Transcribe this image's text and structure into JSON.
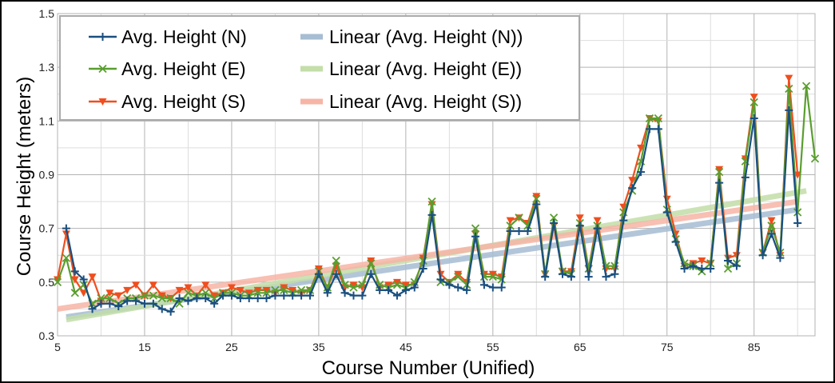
{
  "chart_data": {
    "type": "line",
    "xlabel": "Course Number (Unified)",
    "ylabel": "Course Height (meters)",
    "xlim": [
      5,
      92
    ],
    "ylim": [
      0.3,
      1.5
    ],
    "x_ticks": [
      5,
      15,
      25,
      35,
      45,
      55,
      65,
      75,
      85
    ],
    "y_ticks": [
      0.3,
      0.5,
      0.7,
      0.9,
      1.1,
      1.3,
      1.5
    ],
    "y_tick_labels": [
      "0.3",
      "0.5",
      "0.7",
      "0.9",
      "1.1",
      "1.3",
      "1.5"
    ],
    "grid": true,
    "legend_position": "top-left",
    "series": [
      {
        "name": "Avg. Height (N)",
        "color": "#1a4f7f",
        "marker": "plus",
        "points": [
          [
            6,
            0.7
          ],
          [
            7,
            0.54
          ],
          [
            8,
            0.51
          ],
          [
            9,
            0.4
          ],
          [
            10,
            0.42
          ],
          [
            11,
            0.42
          ],
          [
            12,
            0.41
          ],
          [
            13,
            0.43
          ],
          [
            14,
            0.43
          ],
          [
            15,
            0.42
          ],
          [
            16,
            0.42
          ],
          [
            17,
            0.4
          ],
          [
            18,
            0.39
          ],
          [
            19,
            0.44
          ],
          [
            20,
            0.43
          ],
          [
            21,
            0.44
          ],
          [
            22,
            0.44
          ],
          [
            23,
            0.42
          ],
          [
            24,
            0.45
          ],
          [
            25,
            0.45
          ],
          [
            26,
            0.44
          ],
          [
            27,
            0.44
          ],
          [
            28,
            0.44
          ],
          [
            29,
            0.44
          ],
          [
            30,
            0.45
          ],
          [
            31,
            0.45
          ],
          [
            32,
            0.45
          ],
          [
            33,
            0.45
          ],
          [
            34,
            0.45
          ],
          [
            35,
            0.53
          ],
          [
            36,
            0.46
          ],
          [
            37,
            0.53
          ],
          [
            38,
            0.46
          ],
          [
            39,
            0.45
          ],
          [
            40,
            0.45
          ],
          [
            41,
            0.53
          ],
          [
            42,
            0.47
          ],
          [
            43,
            0.47
          ],
          [
            44,
            0.45
          ],
          [
            45,
            0.47
          ],
          [
            46,
            0.48
          ],
          [
            47,
            0.55
          ],
          [
            48,
            0.75
          ],
          [
            49,
            0.51
          ],
          [
            50,
            0.49
          ],
          [
            51,
            0.48
          ],
          [
            52,
            0.47
          ],
          [
            53,
            0.67
          ],
          [
            54,
            0.49
          ],
          [
            55,
            0.48
          ],
          [
            56,
            0.48
          ],
          [
            57,
            0.69
          ],
          [
            58,
            0.69
          ],
          [
            59,
            0.69
          ],
          [
            60,
            0.79
          ],
          [
            61,
            0.52
          ],
          [
            62,
            0.72
          ],
          [
            63,
            0.53
          ],
          [
            64,
            0.52
          ],
          [
            65,
            0.71
          ],
          [
            66,
            0.52
          ],
          [
            67,
            0.7
          ],
          [
            68,
            0.52
          ],
          [
            69,
            0.53
          ],
          [
            70,
            0.73
          ],
          [
            71,
            0.85
          ],
          [
            72,
            0.91
          ],
          [
            73,
            1.07
          ],
          [
            74,
            1.07
          ],
          [
            75,
            0.76
          ],
          [
            76,
            0.65
          ],
          [
            77,
            0.55
          ],
          [
            78,
            0.56
          ],
          [
            79,
            0.55
          ],
          [
            80,
            0.55
          ],
          [
            81,
            0.87
          ],
          [
            82,
            0.58
          ],
          [
            83,
            0.56
          ],
          [
            84,
            0.89
          ],
          [
            85,
            1.11
          ],
          [
            86,
            0.6
          ],
          [
            87,
            0.68
          ],
          [
            88,
            0.59
          ],
          [
            89,
            1.14
          ],
          [
            90,
            0.72
          ]
        ]
      },
      {
        "name": "Avg. Height (E)",
        "color": "#5a9e2f",
        "marker": "x",
        "points": [
          [
            5,
            0.5
          ],
          [
            6,
            0.59
          ],
          [
            7,
            0.46
          ],
          [
            8,
            0.49
          ],
          [
            9,
            0.42
          ],
          [
            10,
            0.44
          ],
          [
            11,
            0.44
          ],
          [
            12,
            0.42
          ],
          [
            13,
            0.44
          ],
          [
            14,
            0.44
          ],
          [
            15,
            0.45
          ],
          [
            16,
            0.45
          ],
          [
            17,
            0.44
          ],
          [
            18,
            0.44
          ],
          [
            19,
            0.42
          ],
          [
            20,
            0.46
          ],
          [
            21,
            0.45
          ],
          [
            22,
            0.46
          ],
          [
            23,
            0.44
          ],
          [
            24,
            0.46
          ],
          [
            25,
            0.46
          ],
          [
            26,
            0.45
          ],
          [
            27,
            0.45
          ],
          [
            28,
            0.46
          ],
          [
            29,
            0.46
          ],
          [
            30,
            0.47
          ],
          [
            31,
            0.47
          ],
          [
            32,
            0.46
          ],
          [
            33,
            0.47
          ],
          [
            34,
            0.47
          ],
          [
            35,
            0.54
          ],
          [
            36,
            0.48
          ],
          [
            37,
            0.58
          ],
          [
            38,
            0.49
          ],
          [
            39,
            0.48
          ],
          [
            40,
            0.49
          ],
          [
            41,
            0.57
          ],
          [
            42,
            0.49
          ],
          [
            43,
            0.48
          ],
          [
            44,
            0.49
          ],
          [
            45,
            0.48
          ],
          [
            46,
            0.5
          ],
          [
            47,
            0.58
          ],
          [
            48,
            0.8
          ],
          [
            49,
            0.5
          ],
          [
            50,
            0.5
          ],
          [
            51,
            0.52
          ],
          [
            52,
            0.49
          ],
          [
            53,
            0.7
          ],
          [
            54,
            0.52
          ],
          [
            55,
            0.52
          ],
          [
            56,
            0.51
          ],
          [
            57,
            0.71
          ],
          [
            58,
            0.74
          ],
          [
            59,
            0.71
          ],
          [
            60,
            0.81
          ],
          [
            61,
            0.53
          ],
          [
            62,
            0.74
          ],
          [
            63,
            0.54
          ],
          [
            64,
            0.53
          ],
          [
            65,
            0.72
          ],
          [
            66,
            0.55
          ],
          [
            67,
            0.71
          ],
          [
            68,
            0.56
          ],
          [
            69,
            0.56
          ],
          [
            70,
            0.76
          ],
          [
            71,
            0.84
          ],
          [
            72,
            0.95
          ],
          [
            73,
            1.11
          ],
          [
            74,
            1.11
          ],
          [
            75,
            0.77
          ],
          [
            76,
            0.66
          ],
          [
            77,
            0.57
          ],
          [
            78,
            0.56
          ],
          [
            79,
            0.54
          ],
          [
            80,
            0.57
          ],
          [
            81,
            0.91
          ],
          [
            82,
            0.55
          ],
          [
            83,
            0.57
          ],
          [
            84,
            0.95
          ],
          [
            85,
            1.17
          ],
          [
            86,
            0.61
          ],
          [
            87,
            0.71
          ],
          [
            88,
            0.61
          ],
          [
            89,
            1.22
          ],
          [
            90,
            0.76
          ],
          [
            91,
            1.23
          ],
          [
            92,
            0.96
          ]
        ]
      },
      {
        "name": "Avg. Height (S)",
        "color": "#f04e1e",
        "marker": "triangle",
        "points": [
          [
            5,
            0.51
          ],
          [
            6,
            0.68
          ],
          [
            7,
            0.51
          ],
          [
            8,
            0.46
          ],
          [
            9,
            0.52
          ],
          [
            10,
            0.43
          ],
          [
            11,
            0.46
          ],
          [
            12,
            0.45
          ],
          [
            13,
            0.47
          ],
          [
            14,
            0.49
          ],
          [
            15,
            0.45
          ],
          [
            16,
            0.49
          ],
          [
            17,
            0.45
          ],
          [
            18,
            0.44
          ],
          [
            19,
            0.47
          ],
          [
            20,
            0.48
          ],
          [
            21,
            0.45
          ],
          [
            22,
            0.49
          ],
          [
            23,
            0.45
          ],
          [
            24,
            0.46
          ],
          [
            25,
            0.48
          ],
          [
            26,
            0.47
          ],
          [
            27,
            0.46
          ],
          [
            28,
            0.47
          ],
          [
            29,
            0.47
          ],
          [
            30,
            0.46
          ],
          [
            31,
            0.48
          ],
          [
            32,
            0.47
          ],
          [
            33,
            0.46
          ],
          [
            34,
            0.47
          ],
          [
            35,
            0.55
          ],
          [
            36,
            0.48
          ],
          [
            37,
            0.56
          ],
          [
            38,
            0.48
          ],
          [
            39,
            0.49
          ],
          [
            40,
            0.48
          ],
          [
            41,
            0.58
          ],
          [
            42,
            0.48
          ],
          [
            43,
            0.49
          ],
          [
            44,
            0.5
          ],
          [
            45,
            0.49
          ],
          [
            46,
            0.49
          ],
          [
            47,
            0.59
          ],
          [
            48,
            0.79
          ],
          [
            49,
            0.53
          ],
          [
            50,
            0.5
          ],
          [
            51,
            0.53
          ],
          [
            52,
            0.5
          ],
          [
            53,
            0.68
          ],
          [
            54,
            0.53
          ],
          [
            55,
            0.53
          ],
          [
            56,
            0.52
          ],
          [
            57,
            0.73
          ],
          [
            58,
            0.74
          ],
          [
            59,
            0.72
          ],
          [
            60,
            0.82
          ],
          [
            61,
            0.53
          ],
          [
            62,
            0.71
          ],
          [
            63,
            0.54
          ],
          [
            64,
            0.54
          ],
          [
            65,
            0.74
          ],
          [
            66,
            0.55
          ],
          [
            67,
            0.73
          ],
          [
            68,
            0.55
          ],
          [
            69,
            0.55
          ],
          [
            70,
            0.78
          ],
          [
            71,
            0.88
          ],
          [
            72,
            1.0
          ],
          [
            73,
            1.11
          ],
          [
            74,
            1.1
          ],
          [
            75,
            0.81
          ],
          [
            76,
            0.68
          ],
          [
            77,
            0.56
          ],
          [
            78,
            0.57
          ],
          [
            79,
            0.58
          ],
          [
            80,
            0.57
          ],
          [
            81,
            0.92
          ],
          [
            82,
            0.59
          ],
          [
            83,
            0.6
          ],
          [
            84,
            0.96
          ],
          [
            85,
            1.19
          ],
          [
            86,
            0.61
          ],
          [
            87,
            0.73
          ],
          [
            88,
            0.6
          ],
          [
            89,
            1.26
          ],
          [
            90,
            0.9
          ]
        ]
      }
    ],
    "trendlines": [
      {
        "name": "Linear (Avg. Height (N))",
        "color": "#a6bdd3",
        "x": [
          6,
          90
        ],
        "y": [
          0.37,
          0.77
        ]
      },
      {
        "name": "Linear (Avg. Height (E))",
        "color": "#c3dea9",
        "x": [
          6,
          91
        ],
        "y": [
          0.36,
          0.84
        ]
      },
      {
        "name": "Linear (Avg. Height (S))",
        "color": "#f7b5a6",
        "x": [
          5,
          90
        ],
        "y": [
          0.4,
          0.8
        ]
      }
    ]
  }
}
